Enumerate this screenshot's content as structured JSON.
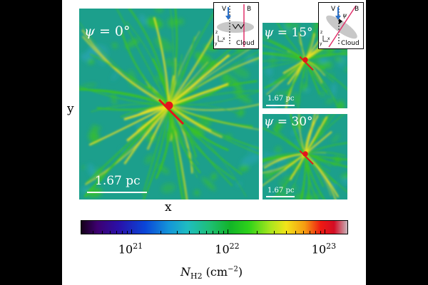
{
  "figure": {
    "panels": [
      {
        "id": "main",
        "psi_symbol": "ψ",
        "psi_value": " = 0°",
        "scale_label": "1.67 pc"
      },
      {
        "id": "psi15",
        "psi_symbol": "ψ",
        "psi_value": " = 15°",
        "scale_label": "1.67 pc"
      },
      {
        "id": "psi30",
        "psi_symbol": "ψ",
        "psi_value": " = 30°",
        "scale_label": "1.67 pc"
      }
    ],
    "axes": {
      "x_label": "x",
      "y_label": "y"
    },
    "insets": [
      {
        "v_label": "V",
        "b_label": "B",
        "cloud_label": "Cloud",
        "z_label": "z",
        "x_label": "x",
        "y_label": "y"
      },
      {
        "v_label": "V",
        "b_label": "B",
        "psi_label": "ψ",
        "cloud_label": "Cloud",
        "z_label": "z",
        "x_label": "x",
        "y_label": "y"
      }
    ],
    "colorbar": {
      "ticks": [
        {
          "base": "10",
          "exp": "21"
        },
        {
          "base": "10",
          "exp": "22"
        },
        {
          "base": "10",
          "exp": "23"
        }
      ],
      "label_symbol": "N",
      "label_sub": "H2",
      "label_unit": " (cm",
      "label_exp": "−2",
      "label_close": ")",
      "scale": "log",
      "range": [
        3e+20,
        1.7e+23
      ]
    },
    "colors": {
      "background": "#1a9e8a",
      "filament": "#3cc41c",
      "ridge": "#f2e21c",
      "core": "#e5141c",
      "bframe": "#e0306a",
      "vector": "#2a70c8"
    }
  }
}
